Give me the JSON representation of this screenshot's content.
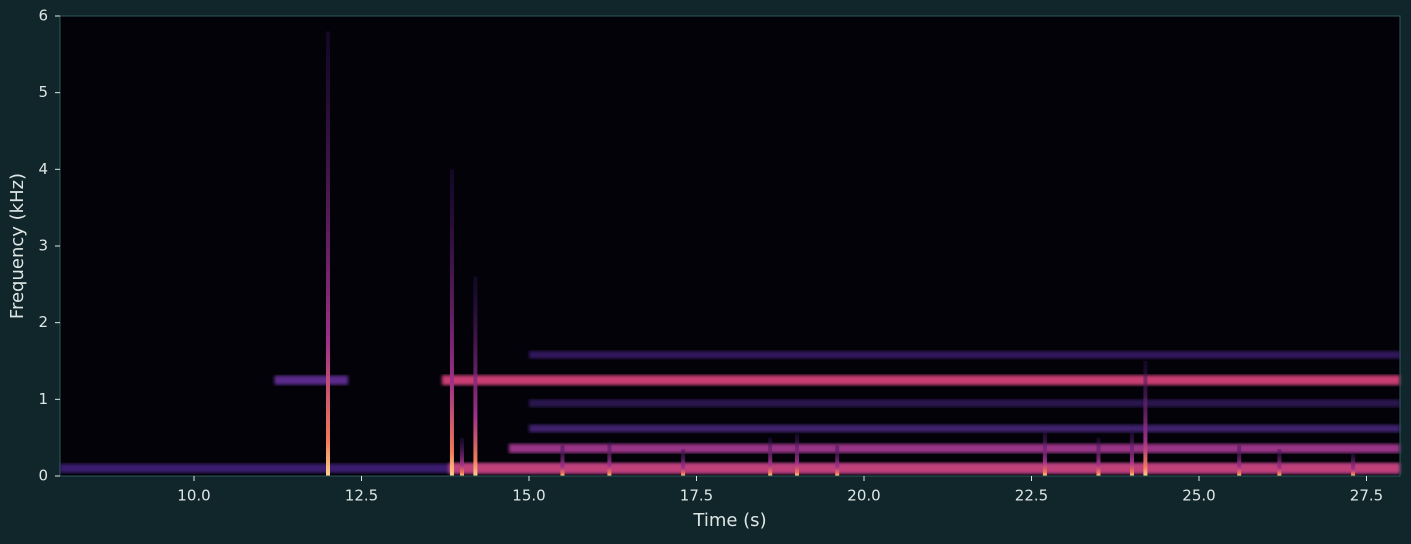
{
  "chart_data": {
    "type": "spectrogram",
    "x_label": "Time (s)",
    "y_label": "Frequency (kHz)",
    "xlim": [
      8,
      28
    ],
    "ylim": [
      0,
      6
    ],
    "xticks": [
      {
        "value": 10,
        "label": "10.0"
      },
      {
        "value": 12.5,
        "label": "12.5"
      },
      {
        "value": 15,
        "label": "15.0"
      },
      {
        "value": 17.5,
        "label": "17.5"
      },
      {
        "value": 20,
        "label": "20.0"
      },
      {
        "value": 22.5,
        "label": "22.5"
      },
      {
        "value": 25,
        "label": "25.0"
      },
      {
        "value": 27.5,
        "label": "27.5"
      }
    ],
    "yticks": [
      0,
      1,
      2,
      3,
      4,
      5,
      6
    ],
    "background": "#020208",
    "tones": [
      {
        "start": 8,
        "end": 28,
        "freq": 0.1,
        "bw": 0.12,
        "color": "#3a1c6e"
      },
      {
        "start": 13.8,
        "end": 28,
        "freq": 0.1,
        "bw": 0.14,
        "color": "#c0407a"
      },
      {
        "start": 11.2,
        "end": 12.3,
        "freq": 1.25,
        "bw": 0.12,
        "color": "#5b2a8c"
      },
      {
        "start": 13.7,
        "end": 28,
        "freq": 1.25,
        "bw": 0.13,
        "color": "#c83c72"
      },
      {
        "start": 14.7,
        "end": 28,
        "freq": 0.36,
        "bw": 0.12,
        "color": "#9a3686"
      },
      {
        "start": 15,
        "end": 28,
        "freq": 0.62,
        "bw": 0.1,
        "color": "#40206e"
      },
      {
        "start": 15,
        "end": 28,
        "freq": 0.95,
        "bw": 0.1,
        "color": "#2a1650"
      },
      {
        "start": 15,
        "end": 28,
        "freq": 1.58,
        "bw": 0.1,
        "color": "#33195c"
      }
    ],
    "transients": [
      {
        "time": 12.0,
        "fmax": 5.8
      },
      {
        "time": 13.85,
        "fmax": 4.0
      },
      {
        "time": 14.2,
        "fmax": 2.6
      },
      {
        "time": 14.0,
        "fmax": 0.5
      },
      {
        "time": 15.5,
        "fmax": 0.4
      },
      {
        "time": 16.2,
        "fmax": 0.45
      },
      {
        "time": 17.3,
        "fmax": 0.35
      },
      {
        "time": 18.6,
        "fmax": 0.5
      },
      {
        "time": 19.0,
        "fmax": 0.55
      },
      {
        "time": 19.6,
        "fmax": 0.4
      },
      {
        "time": 22.7,
        "fmax": 0.6
      },
      {
        "time": 23.5,
        "fmax": 0.5
      },
      {
        "time": 24.0,
        "fmax": 0.6
      },
      {
        "time": 24.2,
        "fmax": 1.5
      },
      {
        "time": 25.6,
        "fmax": 0.4
      },
      {
        "time": 26.2,
        "fmax": 0.35
      },
      {
        "time": 27.3,
        "fmax": 0.3
      }
    ]
  }
}
